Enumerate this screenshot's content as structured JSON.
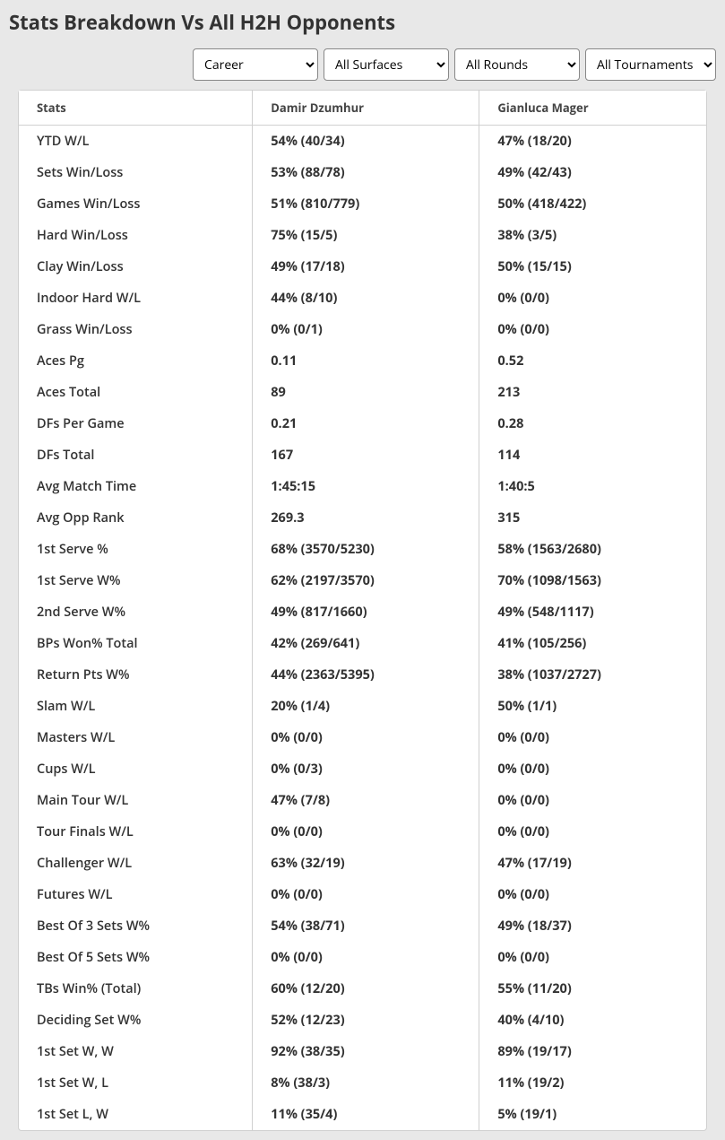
{
  "header": {
    "title": "Stats Breakdown Vs All H2H Opponents"
  },
  "filters": {
    "timeframe": {
      "selected": "Career",
      "options": [
        "Career"
      ]
    },
    "surface": {
      "selected": "All Surfaces",
      "options": [
        "All Surfaces"
      ]
    },
    "round": {
      "selected": "All Rounds",
      "options": [
        "All Rounds"
      ]
    },
    "tournament": {
      "selected": "All Tournaments",
      "options": [
        "All Tournaments"
      ]
    }
  },
  "table": {
    "columns": {
      "stats": "Stats",
      "player1": "Damir Dzumhur",
      "player2": "Gianluca Mager"
    },
    "rows": [
      {
        "stat": "YTD W/L",
        "p1": "54% (40/34)",
        "p2": "47% (18/20)"
      },
      {
        "stat": "Sets Win/Loss",
        "p1": "53% (88/78)",
        "p2": "49% (42/43)"
      },
      {
        "stat": "Games Win/Loss",
        "p1": "51% (810/779)",
        "p2": "50% (418/422)"
      },
      {
        "stat": "Hard Win/Loss",
        "p1": "75% (15/5)",
        "p2": "38% (3/5)"
      },
      {
        "stat": "Clay Win/Loss",
        "p1": "49% (17/18)",
        "p2": "50% (15/15)"
      },
      {
        "stat": "Indoor Hard W/L",
        "p1": "44% (8/10)",
        "p2": "0% (0/0)"
      },
      {
        "stat": "Grass Win/Loss",
        "p1": "0% (0/1)",
        "p2": "0% (0/0)"
      },
      {
        "stat": "Aces Pg",
        "p1": "0.11",
        "p2": "0.52"
      },
      {
        "stat": "Aces Total",
        "p1": "89",
        "p2": "213"
      },
      {
        "stat": "DFs Per Game",
        "p1": "0.21",
        "p2": "0.28"
      },
      {
        "stat": "DFs Total",
        "p1": "167",
        "p2": "114"
      },
      {
        "stat": "Avg Match Time",
        "p1": "1:45:15",
        "p2": "1:40:5"
      },
      {
        "stat": "Avg Opp Rank",
        "p1": "269.3",
        "p2": "315"
      },
      {
        "stat": "1st Serve %",
        "p1": "68% (3570/5230)",
        "p2": "58% (1563/2680)"
      },
      {
        "stat": "1st Serve W%",
        "p1": "62% (2197/3570)",
        "p2": "70% (1098/1563)"
      },
      {
        "stat": "2nd Serve W%",
        "p1": "49% (817/1660)",
        "p2": "49% (548/1117)"
      },
      {
        "stat": "BPs Won% Total",
        "p1": "42% (269/641)",
        "p2": "41% (105/256)"
      },
      {
        "stat": "Return Pts W%",
        "p1": "44% (2363/5395)",
        "p2": "38% (1037/2727)"
      },
      {
        "stat": "Slam W/L",
        "p1": "20% (1/4)",
        "p2": "50% (1/1)"
      },
      {
        "stat": "Masters W/L",
        "p1": "0% (0/0)",
        "p2": "0% (0/0)"
      },
      {
        "stat": "Cups W/L",
        "p1": "0% (0/3)",
        "p2": "0% (0/0)"
      },
      {
        "stat": "Main Tour W/L",
        "p1": "47% (7/8)",
        "p2": "0% (0/0)"
      },
      {
        "stat": "Tour Finals W/L",
        "p1": "0% (0/0)",
        "p2": "0% (0/0)"
      },
      {
        "stat": "Challenger W/L",
        "p1": "63% (32/19)",
        "p2": "47% (17/19)"
      },
      {
        "stat": "Futures W/L",
        "p1": "0% (0/0)",
        "p2": "0% (0/0)"
      },
      {
        "stat": "Best Of 3 Sets W%",
        "p1": "54% (38/71)",
        "p2": "49% (18/37)"
      },
      {
        "stat": "Best Of 5 Sets W%",
        "p1": "0% (0/0)",
        "p2": "0% (0/0)"
      },
      {
        "stat": "TBs Win% (Total)",
        "p1": "60% (12/20)",
        "p2": "55% (11/20)"
      },
      {
        "stat": "Deciding Set W%",
        "p1": "52% (12/23)",
        "p2": "40% (4/10)"
      },
      {
        "stat": "1st Set W, W",
        "p1": "92% (38/35)",
        "p2": "89% (19/17)"
      },
      {
        "stat": "1st Set W, L",
        "p1": "8% (38/3)",
        "p2": "11% (19/2)"
      },
      {
        "stat": "1st Set L, W",
        "p1": "11% (35/4)",
        "p2": "5% (19/1)"
      }
    ]
  }
}
